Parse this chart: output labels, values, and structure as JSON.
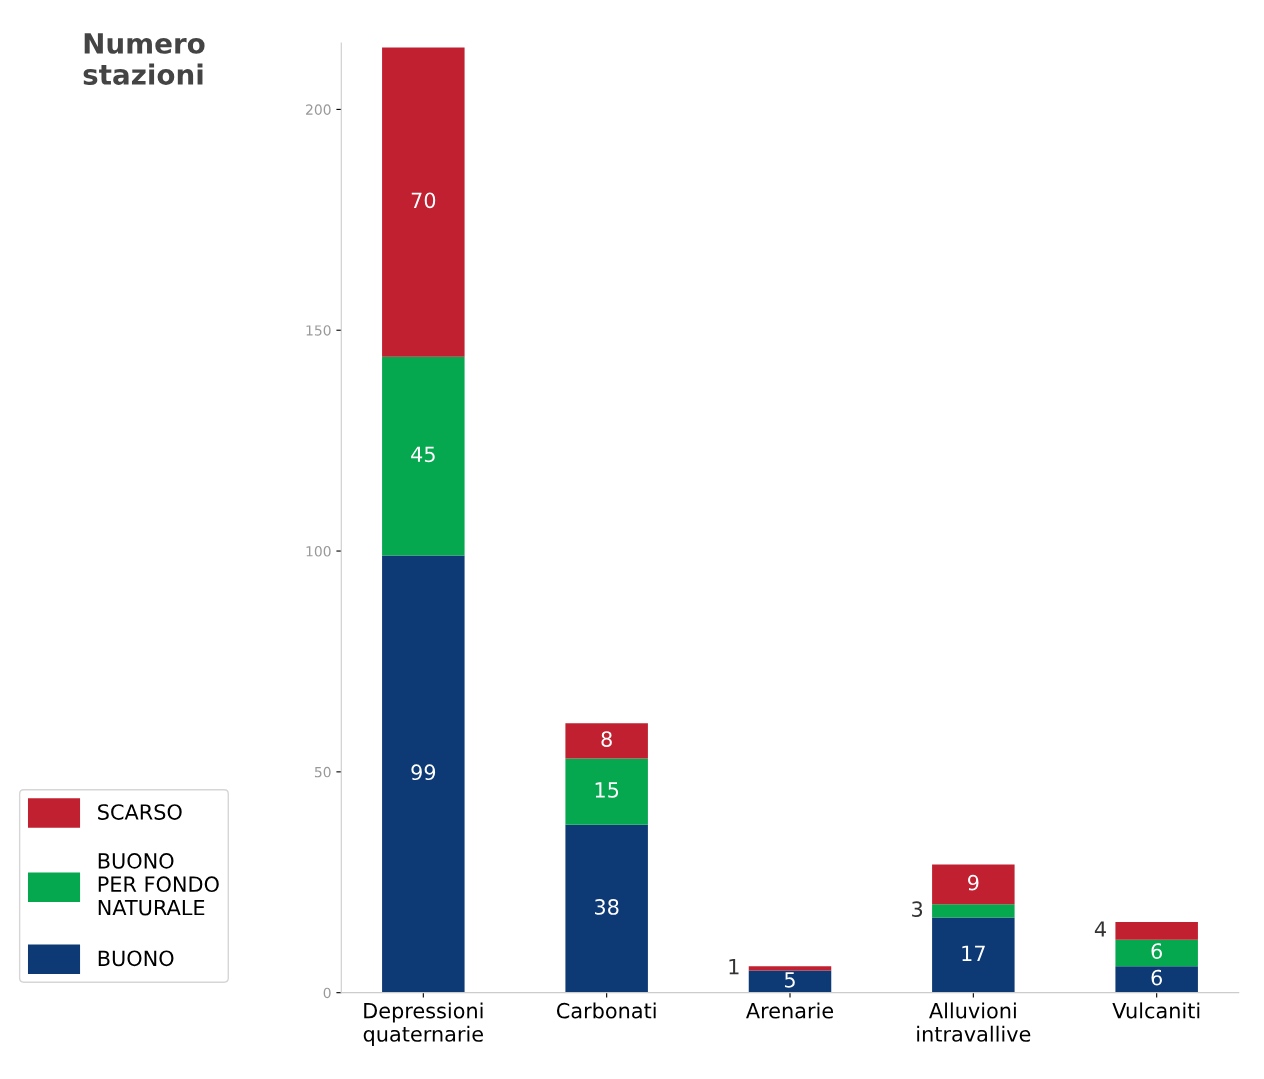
{
  "chart_data": {
    "type": "bar",
    "stacked": true,
    "ylabel": "Numero\nstazioni",
    "categories": [
      "Depressioni\nquaternarie",
      "Carbonati",
      "Arenarie",
      "Alluvioni\nintravallive",
      "Vulcaniti"
    ],
    "series": [
      {
        "name": "BUONO",
        "color": "#0d3a75",
        "values": [
          99,
          38,
          5,
          17,
          6
        ],
        "value_labels": [
          "99",
          "38",
          "5",
          "17",
          "6"
        ]
      },
      {
        "name": "BUONO\nPER FONDO\nNATURALE",
        "color": "#05a84f",
        "values": [
          45,
          15,
          0,
          3,
          6
        ],
        "value_labels": [
          "45",
          "15",
          null,
          "3",
          "6"
        ]
      },
      {
        "name": "SCARSO",
        "color": "#c0202f",
        "values": [
          70,
          8,
          1,
          9,
          4
        ],
        "value_labels": [
          "70",
          "8",
          "1",
          "9",
          "4"
        ]
      }
    ],
    "ylim": [
      0,
      215
    ],
    "yticks": [
      0,
      50,
      100,
      150,
      200
    ],
    "grid": false,
    "legend": "left"
  }
}
